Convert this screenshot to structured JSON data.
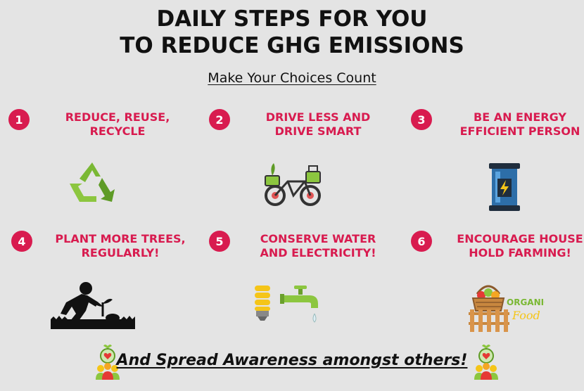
{
  "title_line1": "DAILY STEPS FOR YOU",
  "title_line2": "TO REDUCE GHG EMISSIONS",
  "subtitle": "Make Your Choices Count",
  "steps": [
    {
      "number": "1",
      "line1": "REDUCE, REUSE,",
      "line2": "RECYCLE",
      "icon": "recycle-icon"
    },
    {
      "number": "2",
      "line1": "DRIVE LESS AND",
      "line2": "DRIVE SMART",
      "icon": "bicycle-icon"
    },
    {
      "number": "3",
      "line1": "BE AN ENERGY",
      "line2": "EFFICIENT PERSON",
      "icon": "battery-icon"
    },
    {
      "number": "4",
      "line1": "PLANT MORE TREES,",
      "line2": "REGULARLY!",
      "icon": "planting-icon"
    },
    {
      "number": "5",
      "line1": "CONSERVE WATER",
      "line2": "AND ELECTRICITY!",
      "icon": "bulb-and-tap-icon"
    },
    {
      "number": "6",
      "line1": "ENCOURAGE HOUSE",
      "line2": "HOLD FARMING!",
      "icon": "organic-food-basket-icon"
    }
  ],
  "organic_text_1": "ORGANIC",
  "organic_text_2": "Food",
  "footer": "And Spread Awareness amongst others!",
  "colors": {
    "background": "#e4e4e4",
    "accent": "#d81b4f",
    "text": "#111111"
  }
}
